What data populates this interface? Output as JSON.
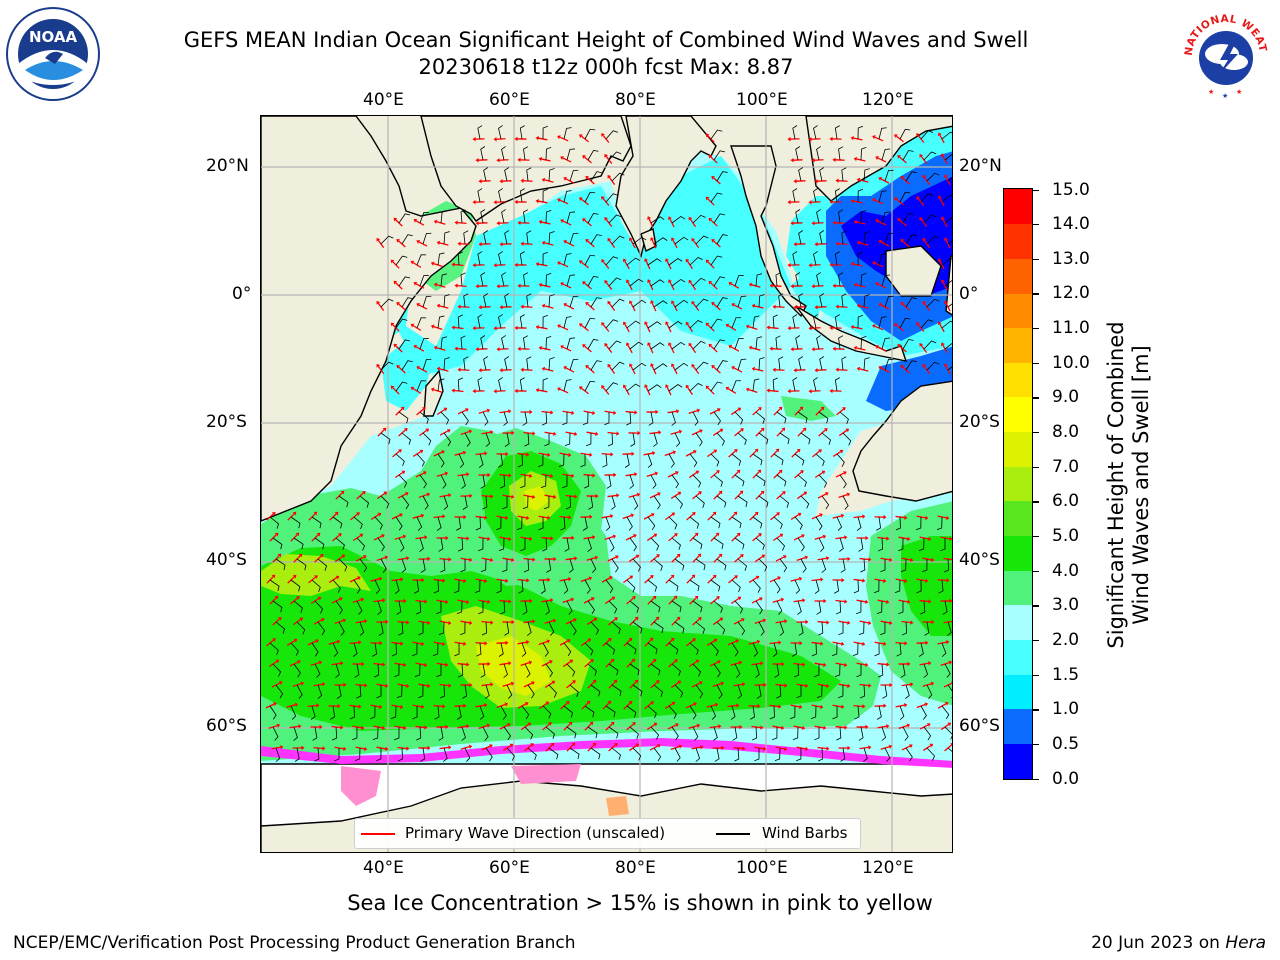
{
  "header": {
    "title_line1": "GEFS MEAN Indian Ocean Significant Height of Combined Wind Waves and Swell",
    "title_line2": "20230618 t12z 000h fcst   Max: 8.87"
  },
  "logos": {
    "left": {
      "icon": "noaa-logo",
      "text": "NOAA"
    },
    "right": {
      "icon": "nws-logo",
      "text": "NATIONAL WEATHER SERVICE"
    }
  },
  "map": {
    "top_lon_labels": [
      "40°E",
      "60°E",
      "80°E",
      "100°E",
      "120°E"
    ],
    "bottom_lon_labels": [
      "40°E",
      "60°E",
      "80°E",
      "100°E",
      "120°E"
    ],
    "left_lat_labels": [
      "20°N",
      "0°",
      "20°S",
      "40°S",
      "60°S"
    ],
    "right_lat_labels": [
      "20°N",
      "0°",
      "20°S",
      "40°S",
      "60°S"
    ],
    "land_color": "#f0eedc",
    "ice_color": "#ffffff",
    "vector_colors": {
      "wave_direction": "#ff0000",
      "wind_barbs": "#000000"
    }
  },
  "legend": {
    "wave_label": "Primary Wave Direction (unscaled)",
    "wind_label": "Wind Barbs"
  },
  "colorbar": {
    "title_line1": "Significant Height of Combined",
    "title_line2": "Wind Waves and Swell [m]",
    "ticks": [
      "0.0",
      "0.5",
      "1.0",
      "1.5",
      "2.0",
      "3.0",
      "4.0",
      "5.0",
      "6.0",
      "7.0",
      "8.0",
      "9.0",
      "10.0",
      "11.0",
      "12.0",
      "13.0",
      "14.0",
      "15.0"
    ],
    "colors": [
      "#0000ff",
      "#0a6cff",
      "#00eeff",
      "#48ffff",
      "#a8ffff",
      "#50f27c",
      "#16e60a",
      "#5ae61e",
      "#aaee10",
      "#ddf200",
      "#ffff00",
      "#ffe000",
      "#ffb400",
      "#ff8c00",
      "#ff6200",
      "#ff3200",
      "#ff0000"
    ]
  },
  "footer": {
    "note": "Sea Ice Concentration > 15% is shown in pink to yellow",
    "credit": "NCEP/EMC/Verification Post Processing Product Generation Branch",
    "date": "20 Jun 2023 on ",
    "host": "Hera"
  }
}
